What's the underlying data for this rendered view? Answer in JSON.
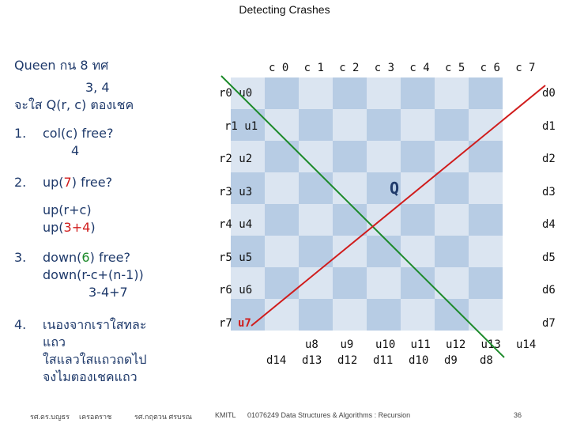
{
  "slide": {
    "title": "Detecting Crashes",
    "page_number": "36"
  },
  "left": {
    "l1": "Queen กน  8 ทศ",
    "l2": "3, 4",
    "l3": "จะใส  Q(r, c) ตองเชค",
    "item1_num": "1.",
    "item1_text": "col(c) free?",
    "item1_val": "4",
    "item2_num": "2.",
    "item2_pre": "up(",
    "item2_red": "7",
    "item2_post": ") free?",
    "item2_sub1": "up(r+c)",
    "item2_sub2_pre": "up(",
    "item2_sub2_red": "3+4",
    "item2_sub2_post": ")",
    "item3_num": "3.",
    "item3_pre": "down(",
    "item3_green": "6",
    "item3_post": ") free?",
    "item3_sub1": "down(r-c+(n-1))",
    "item3_sub2": "3-4+7",
    "item4_num": "4.",
    "item4_l1": "เนองจากเราใสทละ",
    "item4_l2": "แถว",
    "item4_l3": "ใสแลวใสแถวถดไป",
    "item4_l4": "จงไมตองเชคแถว"
  },
  "board": {
    "columns": [
      "c 0",
      "c 1",
      "c 2",
      "c 3",
      "c 4",
      "c 5",
      "c 6",
      "c 7"
    ],
    "rows": [
      "r0 u0",
      "r1 u1",
      "r2 u2",
      "r3 u3",
      "r4 u4",
      "r5 u5",
      "r6 u6",
      "r7"
    ],
    "r7_red": "u7",
    "d_right": [
      "d0",
      "d1",
      "d2",
      "d3",
      "d4",
      "d5",
      "d6",
      "d7"
    ],
    "u_bottom": [
      "u8",
      "u9",
      "u10",
      "u11",
      "u12",
      "u13",
      "u14"
    ],
    "d_bottom": [
      "d14",
      "d13",
      "d12",
      "d11",
      "d10",
      "d9",
      "d8"
    ],
    "queen_symbol": "Q",
    "queen_row": 3,
    "queen_col": 4,
    "colors": {
      "light": "#dbe5f1",
      "dark": "#b7cce4",
      "anti_diag": "#d01c1c",
      "diag": "#1c8a2a",
      "grid_text": "#111111"
    }
  },
  "footer": {
    "author1": "รศ.ดร.บญธร",
    "author2": "เครอตราช",
    "author3": "รศ.กฤตวน  ศรบรณ",
    "org": "KMITL",
    "course": "01076249 Data Structures & Algorithms : Recursion"
  }
}
